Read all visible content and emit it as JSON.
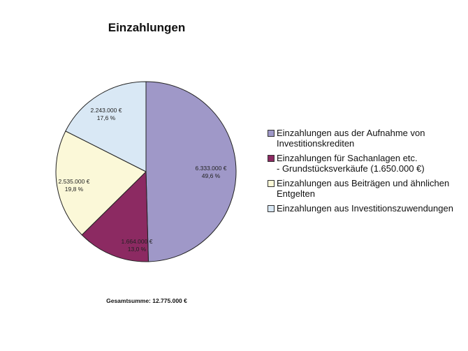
{
  "chart_data": {
    "type": "pie",
    "title": "Einzahlungen",
    "start_angle": "12 o'clock, clockwise",
    "slices": [
      {
        "label": "Einzahlungen aus der Aufnahme von Investitionskrediten",
        "value": 6333000,
        "value_text": "6.333.000 €",
        "percent": 49.6,
        "percent_text": "49,6 %",
        "color": "#9f98c8"
      },
      {
        "label": "Einzahlungen für Sachanlagen etc. - Grundstücksverkäufe (1.650.000 €)",
        "value": 1664000,
        "value_text": "1.664.000 €",
        "percent": 13.0,
        "percent_text": "13,0 %",
        "color": "#8c2a62"
      },
      {
        "label": "Einzahlungen aus Beiträgen und ähnlichen Entgelten",
        "value": 2535000,
        "value_text": "2.535.000 €",
        "percent": 19.8,
        "percent_text": "19,8 %",
        "color": "#fbf8d8"
      },
      {
        "label": "Einzahlungen aus Investitionszuwendungen",
        "value": 2243000,
        "value_text": "2.243.000 €",
        "percent": 17.6,
        "percent_text": "17,6 %",
        "color": "#d9e8f5"
      }
    ],
    "legend_position": "right",
    "total_text": "Gesamtsumme: 12.775.000 €"
  },
  "legend": [
    {
      "line1": "Einzahlungen aus der Aufnahme von",
      "line2": "Investitionskrediten"
    },
    {
      "line1": "Einzahlungen für Sachanlagen etc.",
      "line2": "- Grundstücksverkäufe (1.650.000 €)"
    },
    {
      "line1": "Einzahlungen aus Beiträgen und ähnlichen",
      "line2": "Entgelten"
    },
    {
      "line1": "Einzahlungen aus Investitionszuwendungen",
      "line2": ""
    }
  ]
}
